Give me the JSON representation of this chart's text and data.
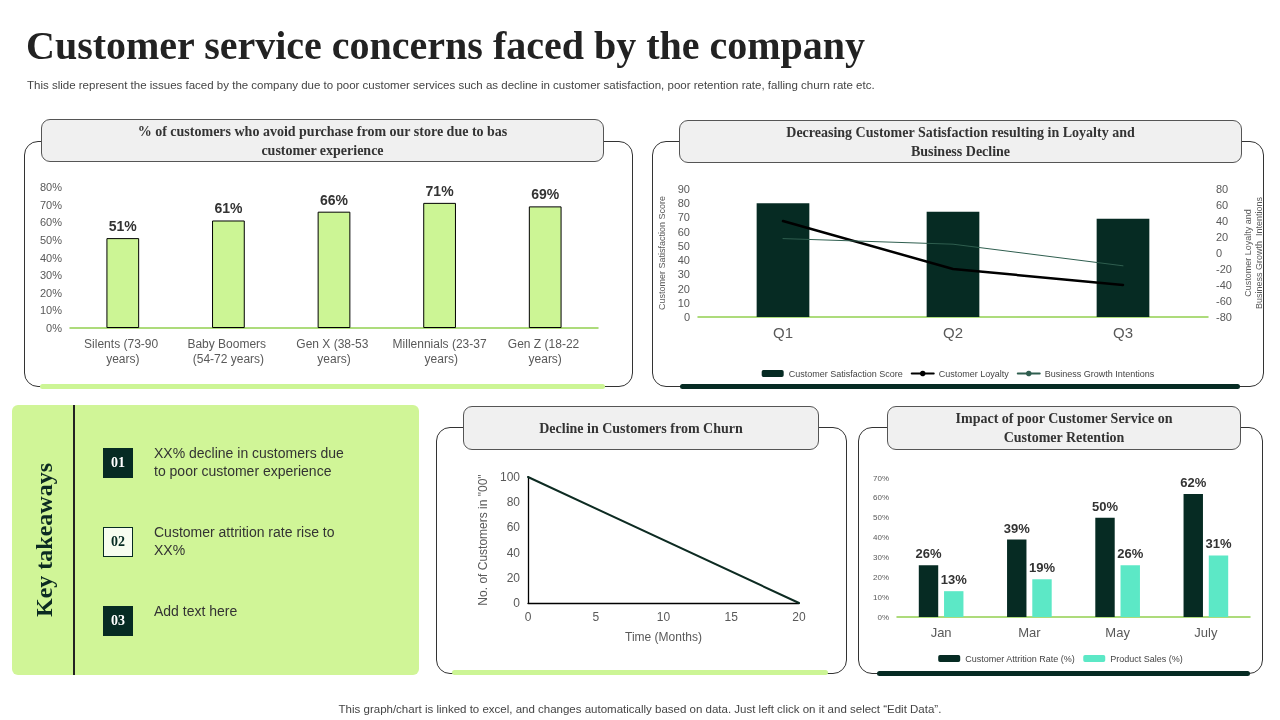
{
  "chart_data": [
    {
      "type": "other",
      "title": "Customer service concerns faced by the company",
      "subtitle": "This slide represent the issues faced by the company due to  poor customer services such as decline in customer satisfaction, poor retention rate, falling churn rate etc.",
      "annotations": [
        "This graph/chart is linked to excel,  and changes automatically based on data. Just left click on it and select “Edit Data”."
      ]
    },
    {
      "type": "bar",
      "title": "% of customers who avoid purchase from our store due to bas customer experience",
      "categories": [
        "Silents (73-90 years)",
        "Baby Boomers (54-72 years)",
        "Gen X (38-53 years)",
        "Millennials (23-37 years)",
        "Gen Z (18-22 years)"
      ],
      "values": [
        51,
        61,
        66,
        71,
        69
      ],
      "value_labels": [
        "51%",
        "61%",
        "66%",
        "71%",
        "69%"
      ],
      "color": "#ccf595",
      "ylim": [
        0,
        80
      ],
      "yticks": [
        {
          "value": 0,
          "label": "0%"
        },
        {
          "value": 10,
          "label": "10%"
        },
        {
          "value": 20,
          "label": "20%"
        },
        {
          "value": 30,
          "label": "30%"
        },
        {
          "value": 40,
          "label": "40%"
        },
        {
          "value": 50,
          "label": "50%"
        },
        {
          "value": 60,
          "label": "60%"
        },
        {
          "value": 70,
          "label": "70%"
        },
        {
          "value": 80,
          "label": "80%"
        }
      ],
      "grid": false,
      "legend": false
    },
    {
      "type": "bar",
      "title": "Decreasing Customer Satisfaction resulting in Loyalty and Business Decline",
      "categories": [
        "Q1",
        "Q2",
        "Q3"
      ],
      "ylabel": "Customer Satisfaction Score",
      "y2label": "Customer Loyalty and Business Growth  Intentions",
      "series": [
        {
          "name": "Customer Satisfaction Score",
          "type": "bar",
          "color": "#062b23",
          "values": [
            80,
            74,
            69
          ]
        },
        {
          "name": "Customer Loyalty",
          "type": "line",
          "axis": "y2",
          "color": "#000000",
          "values": [
            40,
            -20,
            -40
          ]
        },
        {
          "name": "Business Growth Intentions",
          "type": "line",
          "axis": "y2",
          "color": "#2f5e4f",
          "values": [
            18,
            11,
            -16
          ]
        }
      ],
      "ylim": [
        0,
        90
      ],
      "yticks": [
        0,
        10,
        20,
        30,
        40,
        50,
        60,
        70,
        80,
        90
      ],
      "y2lim": [
        -80,
        80
      ],
      "y2ticks": [
        -80,
        -60,
        -40,
        -20,
        0,
        20,
        40,
        60,
        80
      ],
      "grid": false,
      "legend": "bottom",
      "marker": "none"
    },
    {
      "type": "other",
      "title": "Key takeaways",
      "annotations": [
        "01",
        "XX% decline in customers due to poor customer experience",
        "02",
        "Customer attrition rate rise to XX%",
        "03",
        "Add text here"
      ]
    },
    {
      "type": "line",
      "title": "Decline in Customers from Churn",
      "x": [
        0,
        20
      ],
      "values": [
        100,
        0
      ],
      "color": "#0d2b22",
      "xlabel": "Time (Months)",
      "ylabel": "No. of Customers in \"00\"",
      "xlim": [
        0,
        20
      ],
      "xticks": [
        0,
        5,
        10,
        15,
        20
      ],
      "ylim": [
        0,
        100
      ],
      "yticks": [
        0,
        20,
        40,
        60,
        80,
        100
      ],
      "grid": false,
      "legend": false,
      "marker": "none",
      "line_style": "solid"
    },
    {
      "type": "bar",
      "title": "Impact of poor Customer Service on Customer Retention",
      "categories": [
        "Jan",
        "Mar",
        "May",
        "July"
      ],
      "series": [
        {
          "name": "Customer Attrition Rate (%)",
          "color": "#062b23",
          "values": [
            26,
            39,
            50,
            62
          ],
          "value_labels": [
            "26%",
            "39%",
            "50%",
            "62%"
          ]
        },
        {
          "name": "Product Sales (%)",
          "color": "#5ce8c6",
          "values": [
            13,
            19,
            26,
            31
          ],
          "value_labels": [
            "13%",
            "19%",
            "26%",
            "31%"
          ]
        }
      ],
      "ylim": [
        0,
        70
      ],
      "yticks": [
        {
          "value": 0,
          "label": "0%"
        },
        {
          "value": 10,
          "label": "10%"
        },
        {
          "value": 20,
          "label": "20%"
        },
        {
          "value": 30,
          "label": "30%"
        },
        {
          "value": 40,
          "label": "40%"
        },
        {
          "value": 50,
          "label": "50%"
        },
        {
          "value": 60,
          "label": "60%"
        },
        {
          "value": 70,
          "label": "70%"
        }
      ],
      "grid": false,
      "legend": "bottom"
    }
  ]
}
